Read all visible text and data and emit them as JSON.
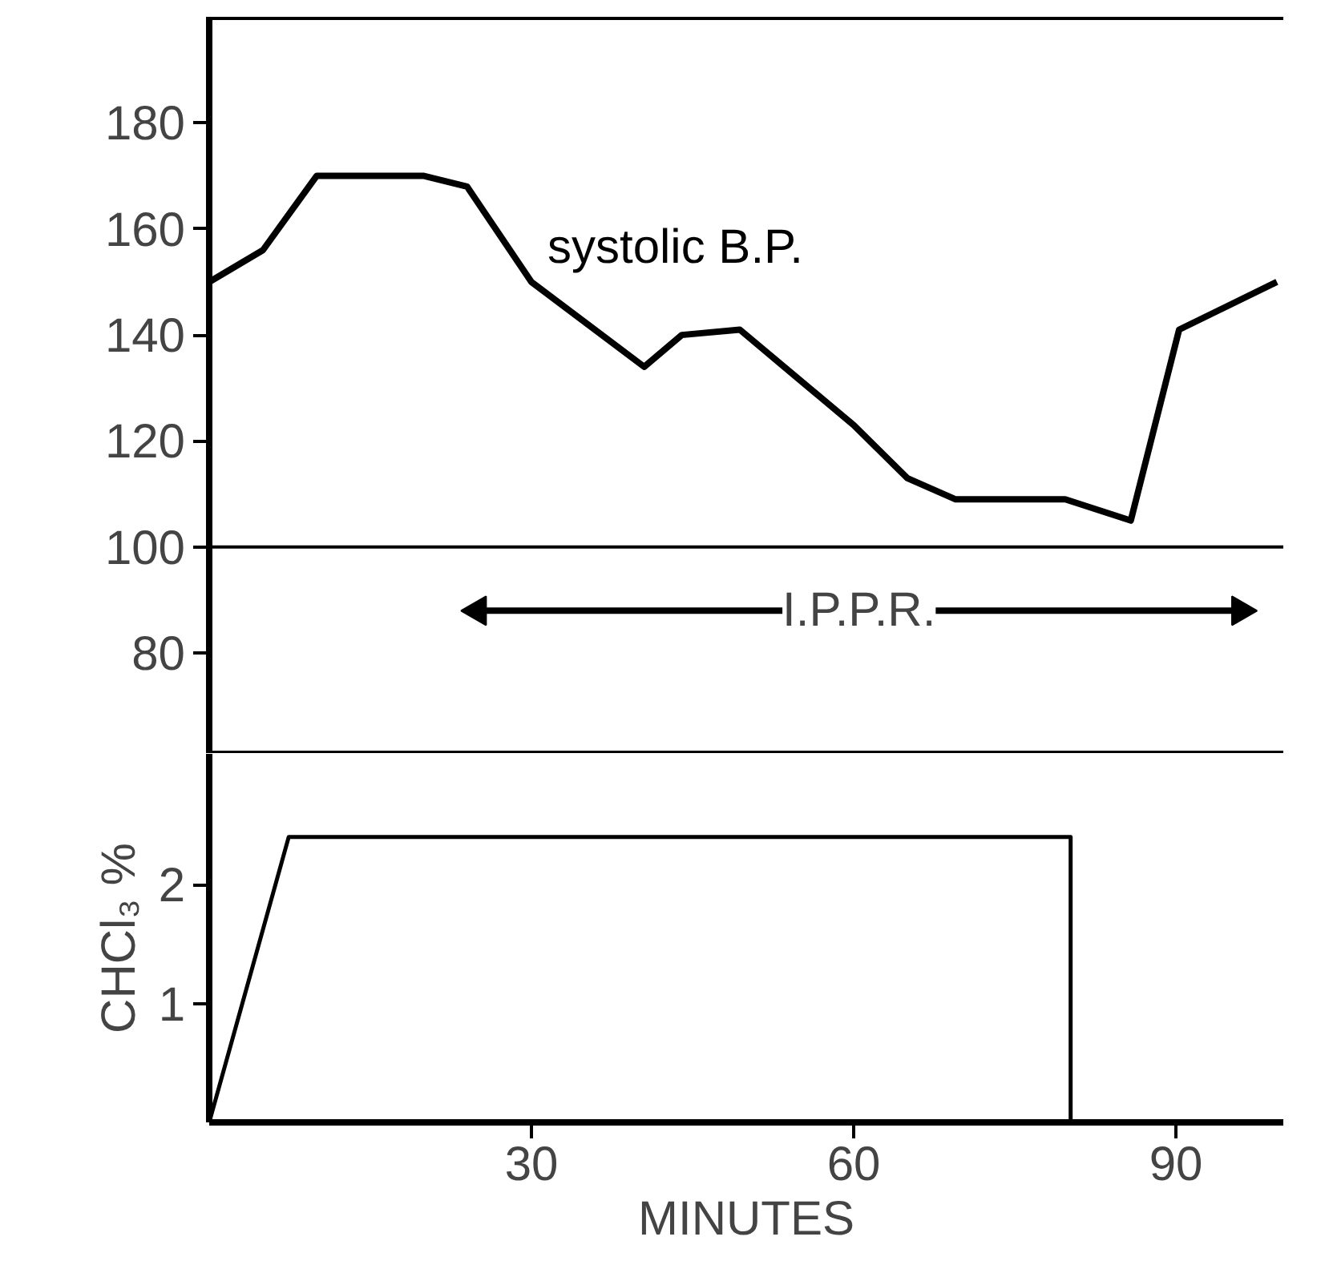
{
  "chart_data": [
    {
      "type": "line",
      "x": [
        0,
        5,
        10,
        20,
        24,
        30,
        40.5,
        44,
        49.4,
        54.7,
        60,
        65,
        69.5,
        79.7,
        85.8,
        90.3,
        99.4
      ],
      "series": [
        {
          "name": "systolic B.P.",
          "color": "#000000",
          "values": [
            150,
            156,
            170,
            170,
            168,
            150,
            134,
            140,
            141,
            132,
            123,
            113,
            109,
            109,
            105,
            141,
            150
          ]
        },
        {
          "color": "#000000",
          "x": [
            25,
            96
          ],
          "values": [
            88,
            88
          ],
          "marker": "triangle"
        }
      ],
      "xlim": [
        0,
        100
      ],
      "ylim": [
        61,
        200
      ],
      "yticks": [
        80,
        100,
        120,
        140,
        160,
        180
      ],
      "tick_labels": "y",
      "ref_lines": [
        {
          "axis": "y",
          "value": 100,
          "color": "#000000"
        },
        {
          "axis": "y",
          "value": 200,
          "color": "#000000"
        }
      ],
      "annotations": [
        {
          "text": "I.P.P.R.",
          "x": 60.5,
          "y": 88
        }
      ]
    },
    {
      "type": "line",
      "x": [
        0,
        7.4,
        80.2,
        80.2
      ],
      "series": [
        {
          "color": "#000000",
          "values": [
            0,
            2.4,
            2.4,
            0
          ]
        }
      ],
      "xlim": [
        0,
        100
      ],
      "ylim": [
        0,
        3.1
      ],
      "xticks": [
        30,
        60,
        90
      ],
      "yticks": [
        1,
        2
      ],
      "xlabel": "MINUTES",
      "ylabel": "CHCl₃ %"
    }
  ]
}
